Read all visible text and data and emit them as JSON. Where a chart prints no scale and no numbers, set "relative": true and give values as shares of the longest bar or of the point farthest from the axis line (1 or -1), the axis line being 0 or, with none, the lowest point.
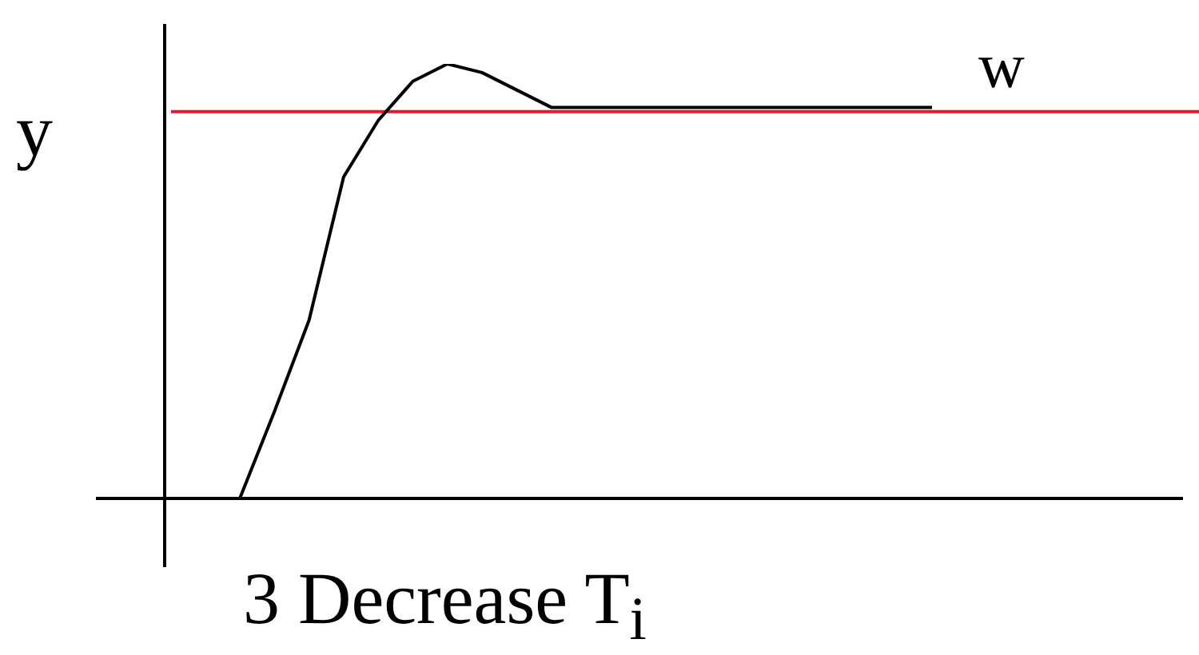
{
  "chart_data": {
    "type": "line",
    "relative": true,
    "xlabel": "3 Decrease T$_{i}$",
    "ylabel": "y",
    "categories": [
      null,
      null,
      null,
      null,
      null,
      null,
      null,
      null,
      null,
      null,
      null,
      null,
      null,
      null,
      null,
      null,
      null,
      null,
      null,
      null,
      null
    ],
    "series": [
      {
        "color": "#000000",
        "values": [
          0,
          0.2,
          0.41,
          0.74,
          0.87,
          0.96,
          1,
          0.98,
          0.94,
          0.9,
          0.9,
          0.9,
          0.9,
          0.9,
          0.9,
          0.9,
          0.9,
          0.9,
          0.9,
          0.9,
          0.9
        ]
      }
    ],
    "ref_lines": [
      {
        "axis": "y",
        "value": 0.89,
        "label": "w",
        "color": "#e8192c"
      }
    ],
    "legend": false,
    "grid": false,
    "marker": "none",
    "line_style": "solid"
  }
}
